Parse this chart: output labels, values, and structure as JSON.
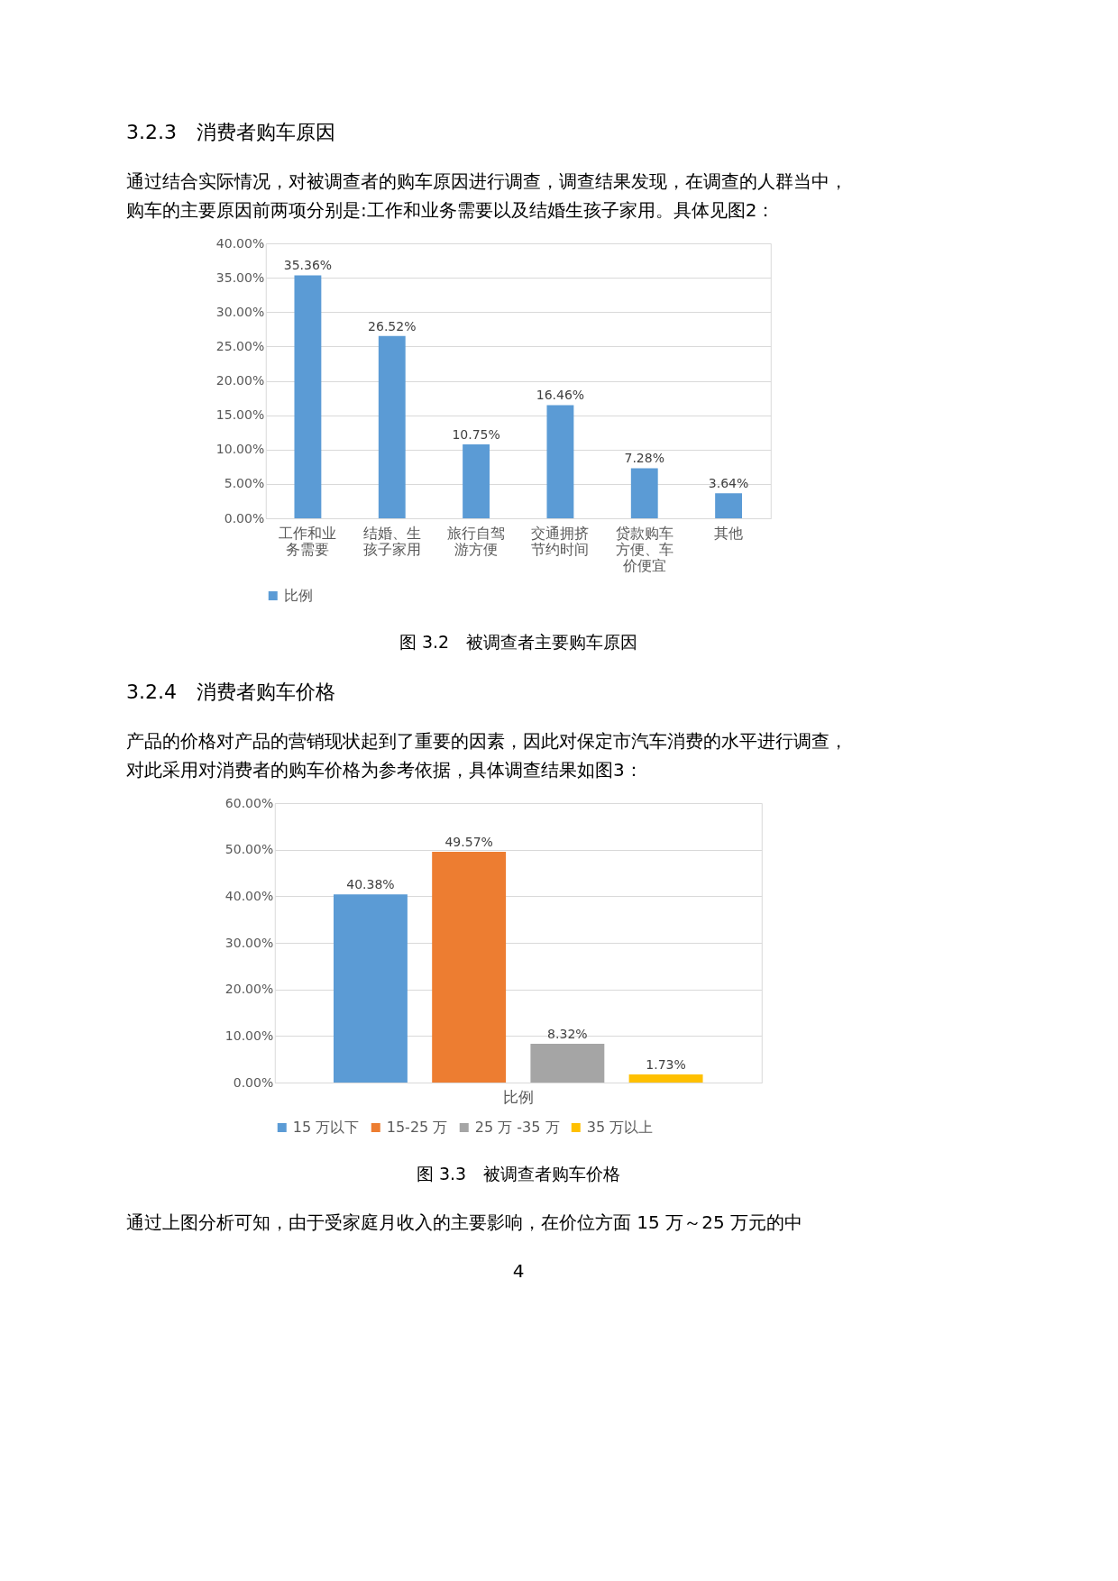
{
  "chart_data": [
    {
      "type": "bar",
      "title": "3.2.3　消费者购车原因",
      "subtitle": "　　通过结合实际情况，对被调查者的购车原因进行调查，调查结果发现，在调查的人群当中，购车的主要原因前两项分别是:工作和业务需要以及结婚生孩子家用。具体见图2：",
      "categories": [
        "工作和业务需要",
        "结婚、生孩子家用",
        "旅行自驾游方便",
        "交通拥挤节约时间",
        "贷款购车方便、车价便宜",
        "其他"
      ],
      "series": [
        {
          "name": "比例",
          "color": "#5b9bd5",
          "values": [
            35.36,
            26.52,
            10.75,
            16.46,
            7.28,
            3.64
          ],
          "value_labels": [
            "35.36%",
            "26.52%",
            "10.75%",
            "16.46%",
            "7.28%",
            "3.64%"
          ]
        }
      ],
      "ylim": [
        0,
        40
      ],
      "yticks": [
        {
          "value": 0,
          "label": "0.00%"
        },
        {
          "value": 5,
          "label": "5.00%"
        },
        {
          "value": 10,
          "label": "10.00%"
        },
        {
          "value": 15,
          "label": "15.00%"
        },
        {
          "value": 20,
          "label": "20.00%"
        },
        {
          "value": 25,
          "label": "25.00%"
        },
        {
          "value": 30,
          "label": "30.00%"
        },
        {
          "value": 35,
          "label": "35.00%"
        },
        {
          "value": 40,
          "label": "40.00%"
        }
      ],
      "grid": "y",
      "legend": "bottom",
      "annotations": [
        "图 3.2　被调查者主要购车原因"
      ]
    },
    {
      "type": "bar",
      "title": "3.2.4　消费者购车价格",
      "subtitle": "　　产品的价格对产品的营销现状起到了重要的因素，因此对保定市汽车消费的水平进行调查，对此采用对消费者的购车价格为参考依据，具体调查结果如图3：",
      "categories": [
        "比例"
      ],
      "series": [
        {
          "name": "15 万以下",
          "color": "#5b9bd5",
          "values": [
            40.38
          ],
          "value_labels": [
            "40.38%"
          ]
        },
        {
          "name": "15-25 万",
          "color": "#ed7d31",
          "values": [
            49.57
          ],
          "value_labels": [
            "49.57%"
          ]
        },
        {
          "name": "25 万 -35 万",
          "color": "#a5a5a5",
          "values": [
            8.32
          ],
          "value_labels": [
            "8.32%"
          ]
        },
        {
          "name": "35 万以上",
          "color": "#ffc000",
          "values": [
            1.73
          ],
          "value_labels": [
            "1.73%"
          ]
        }
      ],
      "ylim": [
        0,
        60
      ],
      "yticks": [
        {
          "value": 0,
          "label": "0.00%"
        },
        {
          "value": 10,
          "label": "10.00%"
        },
        {
          "value": 20,
          "label": "20.00%"
        },
        {
          "value": 30,
          "label": "30.00%"
        },
        {
          "value": 40,
          "label": "40.00%"
        },
        {
          "value": 50,
          "label": "50.00%"
        },
        {
          "value": 60,
          "label": "60.00%"
        }
      ],
      "grid": "y",
      "legend": "bottom",
      "annotations": [
        "图 3.3　被调查者购车价格",
        "　　通过上图分析可知，由于受家庭月收入的主要影响，在价位方面 15 万～25 万元的中",
        "4"
      ]
    }
  ]
}
